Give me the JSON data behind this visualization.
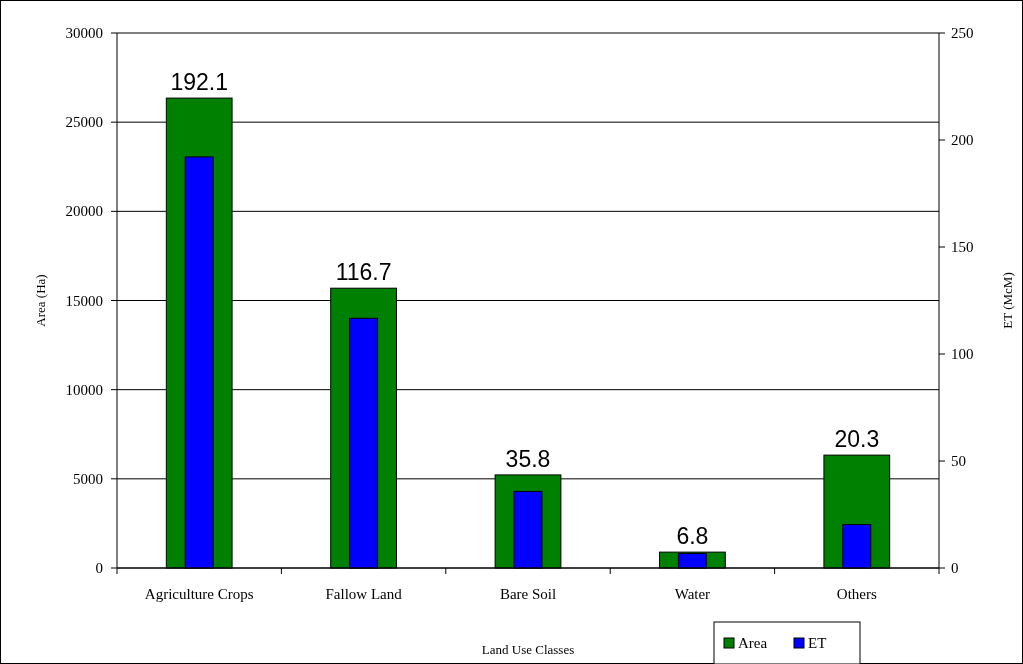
{
  "chart_data": {
    "type": "bar",
    "xlabel": "Land Use Classes",
    "ylabel": "Area (Ha)",
    "y2label": "ET (McM)",
    "categories": [
      "Agriculture Crops",
      "Fallow Land",
      "Bare Soil",
      "Water",
      "Others"
    ],
    "series": [
      {
        "name": "Area",
        "color": "#008000",
        "values": [
          26350,
          15690,
          5220,
          890,
          6330
        ]
      },
      {
        "name": "ET",
        "color": "#0000ff",
        "axis": "y2",
        "values": [
          192.1,
          116.7,
          35.8,
          6.8,
          20.3
        ],
        "value_labels": [
          "192.1",
          "116.7",
          "35.8",
          "6.8",
          "20.3"
        ]
      }
    ],
    "ylim": [
      0,
      30000
    ],
    "yticks": [
      0,
      5000,
      10000,
      15000,
      20000,
      25000,
      30000
    ],
    "y2lim": [
      0,
      250
    ],
    "y2ticks": [
      0,
      50,
      100,
      150,
      200,
      250
    ],
    "grid": "y",
    "legend": "bottom"
  }
}
